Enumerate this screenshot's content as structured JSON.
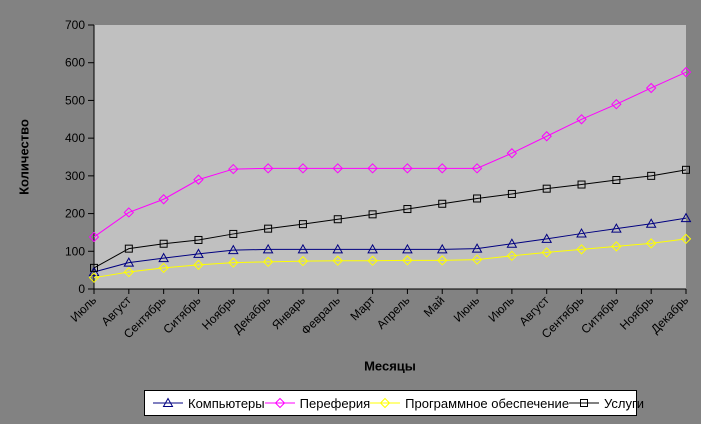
{
  "chart_data": {
    "type": "line",
    "title": "",
    "xlabel": "Месяцы",
    "ylabel": "Количество",
    "ylim": [
      0,
      700
    ],
    "ytick_step": 100,
    "grid": false,
    "legend_position": "bottom",
    "plot_bg": "#c0c0c0",
    "chart_bg": "#828282",
    "axis_color": "#000000",
    "categories": [
      "Июль",
      "Август",
      "Сентябрь",
      "Ситябрь",
      "Ноябрь",
      "Декабрь",
      "Январь",
      "Февраль",
      "Март",
      "Апрель",
      "Май",
      "Июнь",
      "Июль",
      "Август",
      "Сентябрь",
      "Ситябрь",
      "Ноябрь",
      "Декабрь"
    ],
    "series": [
      {
        "name": "Компьютеры",
        "color": "#000080",
        "marker": "triangle",
        "values": [
          45,
          70,
          82,
          93,
          103,
          105,
          105,
          105,
          105,
          105,
          105,
          107,
          120,
          133,
          147,
          160,
          173,
          188
        ]
      },
      {
        "name": "Переферия",
        "color": "#ff00ff",
        "marker": "diamond",
        "values": [
          138,
          203,
          238,
          290,
          318,
          320,
          320,
          320,
          320,
          320,
          320,
          320,
          360,
          405,
          450,
          490,
          533,
          575
        ]
      },
      {
        "name": "Программное обеспечение",
        "color": "#ffff00",
        "marker": "diamond",
        "values": [
          30,
          45,
          56,
          64,
          70,
          72,
          74,
          75,
          75,
          76,
          76,
          78,
          88,
          97,
          105,
          113,
          121,
          133
        ]
      },
      {
        "name": "Услуги",
        "color": "#000000",
        "marker": "square",
        "values": [
          56,
          107,
          120,
          130,
          146,
          160,
          172,
          185,
          198,
          212,
          226,
          240,
          252,
          266,
          277,
          289,
          300,
          316
        ]
      }
    ]
  }
}
